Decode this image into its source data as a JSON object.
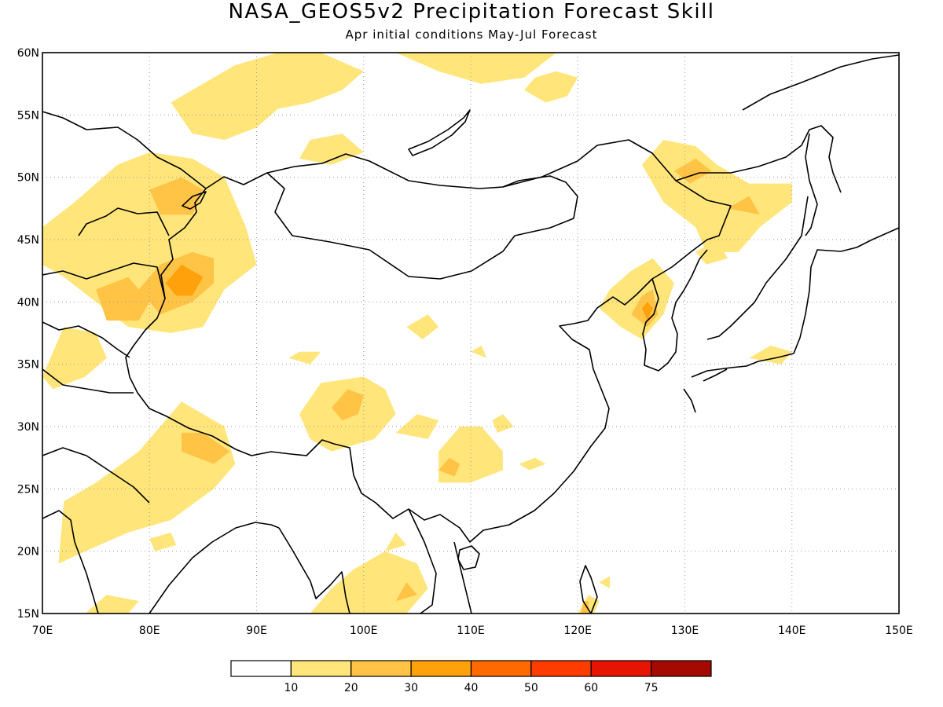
{
  "title": "NASA_GEOS5v2 Precipitation Forecast Skill",
  "subtitle": "Apr initial conditions  May-Jul Forecast",
  "map": {
    "lon_range": [
      70,
      150
    ],
    "lat_range": [
      15,
      60
    ],
    "x_ticks": [
      "70E",
      "80E",
      "90E",
      "100E",
      "110E",
      "120E",
      "130E",
      "140E",
      "150E"
    ],
    "y_ticks": [
      "60N",
      "55N",
      "50N",
      "45N",
      "40N",
      "35N",
      "30N",
      "25N",
      "20N",
      "15N"
    ],
    "grid": true
  },
  "colorbar": {
    "colors": [
      "#ffffff",
      "#ffe57a",
      "#ffc346",
      "#ffa10a",
      "#ff6a00",
      "#ff3c00",
      "#e61400",
      "#a50a00"
    ],
    "labels": [
      "10",
      "20",
      "30",
      "40",
      "50",
      "60",
      "75"
    ]
  },
  "skill_regions": [
    {
      "lvl": 1,
      "pts": [
        [
          70,
          46
        ],
        [
          73,
          48
        ],
        [
          77,
          51
        ],
        [
          80,
          52
        ],
        [
          84,
          51.5
        ],
        [
          87,
          50
        ],
        [
          89,
          46
        ],
        [
          90,
          43
        ],
        [
          87,
          41
        ],
        [
          85,
          38
        ],
        [
          82,
          37.5
        ],
        [
          78,
          38
        ],
        [
          75,
          40
        ],
        [
          72,
          42
        ],
        [
          70,
          43
        ]
      ]
    },
    {
      "lvl": 2,
      "pts": [
        [
          79,
          41
        ],
        [
          81,
          43
        ],
        [
          84,
          44
        ],
        [
          86,
          43.5
        ],
        [
          86,
          41.5
        ],
        [
          84,
          40
        ],
        [
          81,
          39
        ]
      ]
    },
    {
      "lvl": 2,
      "pts": [
        [
          75,
          41
        ],
        [
          78,
          42
        ],
        [
          80,
          40
        ],
        [
          79,
          38.5
        ],
        [
          76,
          38.5
        ]
      ]
    },
    {
      "lvl": 2,
      "pts": [
        [
          80,
          49
        ],
        [
          83,
          50
        ],
        [
          85,
          49
        ],
        [
          84,
          47
        ],
        [
          81,
          47
        ]
      ]
    },
    {
      "lvl": 3,
      "pts": [
        [
          81.5,
          41.5
        ],
        [
          83,
          43
        ],
        [
          85,
          42
        ],
        [
          84,
          40.5
        ],
        [
          82.5,
          40.5
        ]
      ]
    },
    {
      "lvl": 1,
      "pts": [
        [
          70,
          43
        ],
        [
          71,
          44
        ],
        [
          70.5,
          45
        ]
      ]
    },
    {
      "lvl": 1,
      "pts": [
        [
          70,
          34
        ],
        [
          72,
          38
        ],
        [
          75,
          37.5
        ],
        [
          76,
          35.5
        ],
        [
          74,
          34
        ],
        [
          71,
          33
        ]
      ]
    },
    {
      "lvl": 1,
      "pts": [
        [
          72,
          24
        ],
        [
          75,
          25.5
        ],
        [
          79,
          28
        ],
        [
          83,
          32
        ],
        [
          87,
          30
        ],
        [
          88,
          27
        ],
        [
          86,
          25
        ],
        [
          82,
          22.5
        ],
        [
          78,
          21.5
        ],
        [
          74,
          20
        ],
        [
          71.5,
          19
        ]
      ]
    },
    {
      "lvl": 2,
      "pts": [
        [
          83,
          29.5
        ],
        [
          85,
          29.5
        ],
        [
          87.5,
          28
        ],
        [
          86,
          27
        ],
        [
          83,
          28
        ]
      ]
    },
    {
      "lvl": 1,
      "pts": [
        [
          74,
          15
        ],
        [
          76,
          16.5
        ],
        [
          79,
          16
        ],
        [
          78,
          15
        ]
      ]
    },
    {
      "lvl": 1,
      "pts": [
        [
          80,
          21
        ],
        [
          82,
          21.5
        ],
        [
          82.5,
          20.5
        ],
        [
          80.5,
          20
        ]
      ]
    },
    {
      "lvl": 1,
      "pts": [
        [
          82,
          56
        ],
        [
          85,
          57.5
        ],
        [
          88,
          59
        ],
        [
          92,
          60
        ],
        [
          96,
          60
        ],
        [
          100,
          58.5
        ],
        [
          98,
          57
        ],
        [
          95,
          56
        ],
        [
          92,
          55.5
        ],
        [
          90,
          54
        ],
        [
          87,
          53
        ],
        [
          84,
          53.5
        ]
      ]
    },
    {
      "lvl": 1,
      "pts": [
        [
          103,
          60
        ],
        [
          107,
          58.5
        ],
        [
          111,
          57.5
        ],
        [
          115,
          58
        ],
        [
          118,
          60
        ]
      ]
    },
    {
      "lvl": 1,
      "pts": [
        [
          115,
          57
        ],
        [
          117,
          56
        ],
        [
          119,
          56.5
        ],
        [
          120,
          58
        ],
        [
          118,
          58.5
        ],
        [
          116,
          58
        ]
      ]
    },
    {
      "lvl": 1,
      "pts": [
        [
          95,
          53
        ],
        [
          98,
          53.5
        ],
        [
          100,
          52
        ],
        [
          97,
          51
        ],
        [
          94,
          51.5
        ]
      ]
    },
    {
      "lvl": 1,
      "pts": [
        [
          93,
          35.5
        ],
        [
          94,
          36
        ],
        [
          96,
          36
        ],
        [
          95,
          35
        ]
      ]
    },
    {
      "lvl": 1,
      "pts": [
        [
          94,
          31
        ],
        [
          96,
          33.5
        ],
        [
          100,
          34
        ],
        [
          102,
          33
        ],
        [
          103,
          31
        ],
        [
          101,
          29
        ],
        [
          97,
          28
        ],
        [
          95,
          29
        ]
      ]
    },
    {
      "lvl": 2,
      "pts": [
        [
          97,
          31.5
        ],
        [
          98.5,
          33
        ],
        [
          100,
          32.5
        ],
        [
          99.5,
          31
        ],
        [
          98,
          30.5
        ]
      ]
    },
    {
      "lvl": 1,
      "pts": [
        [
          103,
          29.5
        ],
        [
          105,
          31
        ],
        [
          107,
          30.5
        ],
        [
          106,
          29
        ]
      ]
    },
    {
      "lvl": 1,
      "pts": [
        [
          107,
          28
        ],
        [
          109,
          30
        ],
        [
          111,
          30
        ],
        [
          113,
          28
        ],
        [
          113,
          26.5
        ],
        [
          110,
          25.5
        ],
        [
          107,
          25.5
        ]
      ]
    },
    {
      "lvl": 2,
      "pts": [
        [
          107,
          26.5
        ],
        [
          108,
          27.5
        ],
        [
          109,
          27
        ],
        [
          108.5,
          26
        ]
      ]
    },
    {
      "lvl": 1,
      "pts": [
        [
          112,
          30.5
        ],
        [
          113,
          31
        ],
        [
          114,
          30
        ],
        [
          112.5,
          29.5
        ]
      ]
    },
    {
      "lvl": 1,
      "pts": [
        [
          114.5,
          27
        ],
        [
          116,
          27.5
        ],
        [
          117,
          27
        ],
        [
          115.5,
          26.5
        ]
      ]
    },
    {
      "lvl": 1,
      "pts": [
        [
          104,
          38
        ],
        [
          106,
          39
        ],
        [
          107,
          38
        ],
        [
          105.5,
          37
        ]
      ]
    },
    {
      "lvl": 1,
      "pts": [
        [
          110,
          36
        ],
        [
          111,
          36.5
        ],
        [
          111.5,
          35.5
        ]
      ]
    },
    {
      "lvl": 1,
      "pts": [
        [
          95,
          15
        ],
        [
          97,
          17
        ],
        [
          99,
          18.5
        ],
        [
          101,
          19.5
        ],
        [
          102,
          20
        ],
        [
          105,
          19
        ],
        [
          106,
          17
        ],
        [
          104,
          15
        ]
      ]
    },
    {
      "lvl": 2,
      "pts": [
        [
          103,
          16
        ],
        [
          104,
          17.5
        ],
        [
          105,
          16.5
        ]
      ]
    },
    {
      "lvl": 1,
      "pts": [
        [
          102,
          20
        ],
        [
          103,
          21.5
        ],
        [
          104,
          20.5
        ]
      ]
    },
    {
      "lvl": 1,
      "pts": [
        [
          122,
          39.5
        ],
        [
          123,
          41
        ],
        [
          125,
          42.5
        ],
        [
          127,
          43.5
        ],
        [
          129,
          41.5
        ],
        [
          128,
          39
        ],
        [
          126,
          37
        ],
        [
          124,
          38
        ]
      ]
    },
    {
      "lvl": 2,
      "pts": [
        [
          125,
          39
        ],
        [
          126,
          40.5
        ],
        [
          127,
          41
        ],
        [
          127.5,
          39
        ],
        [
          126.5,
          38
        ]
      ]
    },
    {
      "lvl": 3,
      "pts": [
        [
          126,
          39.5
        ],
        [
          126.5,
          40
        ],
        [
          127,
          39.5
        ],
        [
          126.5,
          38.5
        ]
      ]
    },
    {
      "lvl": 1,
      "pts": [
        [
          126,
          51
        ],
        [
          128,
          53
        ],
        [
          131,
          52.5
        ],
        [
          133,
          51
        ],
        [
          136,
          49.5
        ],
        [
          140,
          49.5
        ],
        [
          140,
          48
        ],
        [
          137,
          46
        ],
        [
          135,
          44
        ],
        [
          132,
          44
        ],
        [
          131,
          46
        ],
        [
          128,
          48
        ]
      ]
    },
    {
      "lvl": 2,
      "pts": [
        [
          129,
          50.5
        ],
        [
          131,
          51.5
        ],
        [
          132.5,
          50.5
        ],
        [
          130.5,
          49.5
        ]
      ]
    },
    {
      "lvl": 2,
      "pts": [
        [
          134,
          47.5
        ],
        [
          136,
          48.5
        ],
        [
          137,
          47
        ]
      ]
    },
    {
      "lvl": 1,
      "pts": [
        [
          131,
          44
        ],
        [
          133,
          45
        ],
        [
          134,
          43.5
        ],
        [
          132,
          43
        ]
      ]
    },
    {
      "lvl": 1,
      "pts": [
        [
          136,
          35.5
        ],
        [
          138,
          36.5
        ],
        [
          140,
          36
        ],
        [
          139,
          35
        ]
      ]
    },
    {
      "lvl": 1,
      "pts": [
        [
          120,
          15
        ],
        [
          121,
          16.5
        ],
        [
          122,
          16
        ],
        [
          121.5,
          15
        ]
      ]
    },
    {
      "lvl": 2,
      "pts": [
        [
          120.3,
          15
        ],
        [
          120.5,
          16
        ],
        [
          121,
          16
        ],
        [
          121,
          15
        ]
      ]
    },
    {
      "lvl": 1,
      "pts": [
        [
          122,
          17.5
        ],
        [
          123,
          18
        ],
        [
          123,
          17
        ]
      ]
    }
  ]
}
